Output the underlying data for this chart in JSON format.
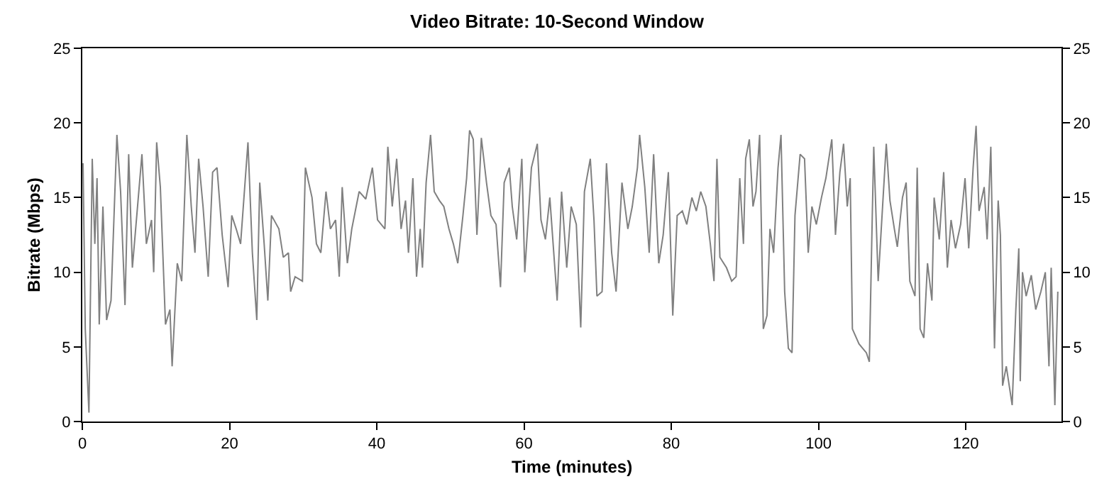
{
  "chart_data": {
    "type": "line",
    "title": "Video Bitrate: 10-Second Window",
    "xlabel": "Time (minutes)",
    "ylabel": "Bitrate (Mbps)",
    "x": [
      0.1,
      0.4,
      0.9,
      1.35,
      1.7,
      2.0,
      2.3,
      2.8,
      3.3,
      3.9,
      4.7,
      5.2,
      5.8,
      6.3,
      6.8,
      7.4,
      8.1,
      8.7,
      9.4,
      9.7,
      10.1,
      10.6,
      11.3,
      11.9,
      12.2,
      12.9,
      13.5,
      14.2,
      14.8,
      15.3,
      15.8,
      16.4,
      17.1,
      17.7,
      18.3,
      19.0,
      19.8,
      20.3,
      20.9,
      21.5,
      22.5,
      23.1,
      23.7,
      24.1,
      24.7,
      25.2,
      25.7,
      26.7,
      27.3,
      28.0,
      28.3,
      28.9,
      29.9,
      30.3,
      31.2,
      31.8,
      32.4,
      33.1,
      33.7,
      34.4,
      34.9,
      35.3,
      36.0,
      36.6,
      37.6,
      38.5,
      39.4,
      40.1,
      41.1,
      41.5,
      42.1,
      42.7,
      43.3,
      43.9,
      44.3,
      44.9,
      45.4,
      45.9,
      46.2,
      46.7,
      47.3,
      47.8,
      48.5,
      49.1,
      49.8,
      50.4,
      51.0,
      51.7,
      52.2,
      52.6,
      53.1,
      53.6,
      54.2,
      54.9,
      55.5,
      56.2,
      56.8,
      57.3,
      58.0,
      58.4,
      59.0,
      59.7,
      60.1,
      61.0,
      61.8,
      62.3,
      62.9,
      63.5,
      64.5,
      65.1,
      65.8,
      66.4,
      67.1,
      67.7,
      68.2,
      69.0,
      69.5,
      69.9,
      70.6,
      71.2,
      71.9,
      72.5,
      73.3,
      74.1,
      74.7,
      75.4,
      75.7,
      76.4,
      77.0,
      77.6,
      78.3,
      78.9,
      79.6,
      80.2,
      80.8,
      81.5,
      82.1,
      82.8,
      83.4,
      84.0,
      84.7,
      85.3,
      85.8,
      86.2,
      86.6,
      87.5,
      88.2,
      88.8,
      89.3,
      89.8,
      90.1,
      90.6,
      91.1,
      91.5,
      92.0,
      92.5,
      93.0,
      93.4,
      93.9,
      94.5,
      94.9,
      95.4,
      95.9,
      96.4,
      96.8,
      97.5,
      98.1,
      98.6,
      99.1,
      99.7,
      100.4,
      101.0,
      101.8,
      102.3,
      102.9,
      103.4,
      103.9,
      104.3,
      104.6,
      105.5,
      106.5,
      106.9,
      107.3,
      107.5,
      108.1,
      108.7,
      109.2,
      109.7,
      110.3,
      110.7,
      111.4,
      111.9,
      112.4,
      113.1,
      113.4,
      113.8,
      114.3,
      114.8,
      115.4,
      115.7,
      116.4,
      117.0,
      117.5,
      118.0,
      118.6,
      119.3,
      119.9,
      120.4,
      121.0,
      121.4,
      121.8,
      122.5,
      122.9,
      123.4,
      123.9,
      124.4,
      124.7,
      125.0,
      125.5,
      126.3,
      126.8,
      127.2,
      127.4,
      127.7,
      128.2,
      128.9,
      129.5,
      130.2,
      130.8,
      131.3,
      131.6,
      132.1,
      132.5
    ],
    "series": [
      {
        "color": "#808080",
        "values": [
          17.3,
          6.2,
          0.6,
          17.6,
          11.9,
          16.3,
          6.5,
          14.4,
          6.8,
          8.1,
          19.2,
          15.4,
          7.8,
          17.9,
          10.3,
          13.8,
          17.9,
          11.9,
          13.5,
          10.0,
          18.7,
          15.7,
          6.5,
          7.5,
          3.7,
          10.6,
          9.4,
          19.2,
          14.4,
          11.3,
          17.6,
          14.4,
          9.7,
          16.7,
          17.0,
          12.5,
          9.0,
          13.8,
          12.9,
          11.9,
          18.7,
          11.3,
          6.8,
          16.0,
          11.9,
          8.1,
          13.8,
          12.9,
          11.0,
          11.3,
          8.7,
          9.7,
          9.4,
          17.0,
          15.0,
          11.9,
          11.3,
          15.4,
          12.9,
          13.5,
          9.7,
          15.7,
          10.6,
          12.9,
          15.4,
          14.9,
          17.0,
          13.5,
          12.9,
          18.4,
          14.4,
          17.6,
          12.9,
          14.8,
          11.3,
          16.3,
          9.7,
          12.9,
          10.3,
          16.0,
          19.2,
          15.4,
          14.8,
          14.4,
          12.9,
          11.9,
          10.6,
          13.8,
          16.3,
          19.5,
          18.9,
          12.5,
          19.0,
          16.0,
          13.8,
          13.2,
          9.0,
          16.0,
          17.0,
          14.4,
          12.2,
          17.6,
          10.0,
          17.0,
          18.6,
          13.5,
          12.2,
          15.0,
          8.1,
          15.4,
          10.3,
          14.4,
          13.2,
          6.3,
          15.4,
          17.6,
          13.5,
          8.4,
          8.7,
          17.3,
          11.3,
          8.7,
          16.0,
          12.9,
          14.4,
          17.0,
          19.2,
          15.7,
          11.3,
          17.9,
          10.6,
          12.5,
          16.7,
          7.1,
          13.8,
          14.1,
          13.2,
          15.0,
          14.1,
          15.4,
          14.4,
          11.9,
          9.4,
          17.6,
          11.0,
          10.3,
          9.4,
          9.7,
          16.3,
          11.9,
          17.6,
          18.9,
          14.4,
          15.4,
          19.2,
          6.2,
          7.1,
          12.9,
          11.3,
          17.0,
          19.2,
          8.7,
          4.9,
          4.6,
          13.8,
          17.9,
          17.6,
          11.3,
          14.4,
          13.2,
          15.0,
          16.3,
          18.9,
          12.5,
          16.7,
          18.6,
          14.4,
          16.3,
          6.2,
          5.2,
          4.6,
          4.0,
          13.8,
          18.4,
          9.4,
          14.4,
          18.6,
          14.8,
          12.9,
          11.7,
          15.0,
          16.0,
          9.4,
          8.4,
          17.0,
          6.2,
          5.6,
          10.6,
          8.1,
          15.0,
          12.2,
          16.7,
          10.3,
          13.5,
          11.6,
          13.2,
          16.3,
          11.6,
          17.0,
          19.8,
          14.1,
          15.7,
          12.2,
          18.4,
          4.9,
          14.8,
          12.5,
          2.4,
          3.7,
          1.1,
          7.5,
          11.6,
          2.7,
          10.0,
          8.4,
          9.8,
          7.5,
          8.7,
          10.0,
          3.7,
          10.3,
          1.1,
          8.7
        ]
      }
    ],
    "xlim": [
      0,
      133
    ],
    "xticks": [
      0,
      20,
      40,
      60,
      80,
      100,
      120
    ],
    "ylim": [
      0,
      25
    ],
    "yticks": [
      0,
      5,
      10,
      15,
      20,
      25
    ],
    "y2lim": [
      0,
      25
    ],
    "y2ticks": [
      0,
      5,
      10,
      15,
      20,
      25
    ],
    "marker": "none",
    "line_style": "solid"
  }
}
